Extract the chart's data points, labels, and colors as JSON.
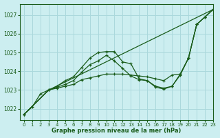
{
  "background_color": "#cceef0",
  "grid_color": "#aad8dc",
  "line_color": "#1a5c1a",
  "text_color": "#1a5c1a",
  "xlabel": "Graphe pression niveau de la mer (hPa)",
  "xlim": [
    -0.5,
    23
  ],
  "ylim": [
    1021.4,
    1027.6
  ],
  "yticks": [
    1022,
    1023,
    1024,
    1025,
    1026,
    1027
  ],
  "xticks": [
    0,
    1,
    2,
    3,
    4,
    5,
    6,
    7,
    8,
    9,
    10,
    11,
    12,
    13,
    14,
    15,
    16,
    17,
    18,
    19,
    20,
    21,
    22,
    23
  ],
  "series": [
    {
      "x": [
        0,
        1,
        2,
        3,
        4,
        5,
        6,
        7,
        8,
        9,
        10,
        11,
        12,
        13,
        14,
        15,
        16,
        17,
        18,
        19,
        20,
        21,
        22,
        23
      ],
      "y": [
        1021.7,
        1022.1,
        1022.8,
        1023.0,
        1023.2,
        1023.5,
        1023.7,
        1024.2,
        1024.7,
        1025.0,
        1025.05,
        1025.05,
        1024.5,
        1024.4,
        1023.6,
        1023.5,
        1023.2,
        1023.1,
        1023.2,
        1023.8,
        1024.7,
        1026.5,
        1026.9,
        1027.3
      ]
    },
    {
      "x": [
        0,
        3,
        4,
        5,
        6,
        7,
        8,
        9,
        10,
        11,
        12,
        13,
        14,
        15,
        16,
        17,
        18,
        19,
        20,
        21,
        22,
        23
      ],
      "y": [
        1021.7,
        1023.0,
        1023.15,
        1023.3,
        1023.5,
        1023.95,
        1024.35,
        1024.55,
        1024.85,
        1024.55,
        1024.15,
        1023.75,
        1023.55,
        1023.5,
        1023.15,
        1023.05,
        1023.2,
        1023.85,
        1024.7,
        1026.5,
        1026.9,
        1027.3
      ]
    },
    {
      "x": [
        0,
        3,
        4,
        5,
        6,
        7,
        8,
        9,
        10,
        11,
        12,
        13,
        14,
        15,
        16,
        17,
        18,
        19,
        20,
        21,
        22,
        23
      ],
      "y": [
        1021.7,
        1023.0,
        1023.1,
        1023.2,
        1023.3,
        1023.55,
        1023.65,
        1023.75,
        1023.85,
        1023.85,
        1023.85,
        1023.8,
        1023.75,
        1023.7,
        1023.6,
        1023.5,
        1023.8,
        1023.85,
        1024.7,
        1026.5,
        1026.9,
        1027.3
      ]
    },
    {
      "x": [
        0,
        3,
        23
      ],
      "y": [
        1021.7,
        1023.0,
        1027.3
      ]
    }
  ]
}
